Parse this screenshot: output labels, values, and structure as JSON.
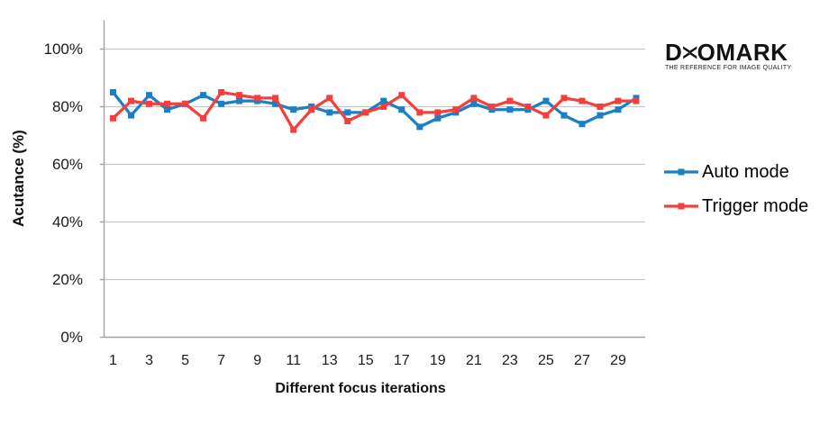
{
  "branding": {
    "logo": {
      "d": "D",
      "x": "><",
      "o": "O",
      "mark": "MARK"
    },
    "tagline": "THE REFERENCE FOR IMAGE QUALITY"
  },
  "chart_data": {
    "type": "line",
    "title": "",
    "xlabel": "Different focus iterations",
    "ylabel": "Acutance (%)",
    "ylim": [
      0,
      110
    ],
    "y_tick_values": [
      0,
      20,
      40,
      60,
      80,
      100
    ],
    "y_ticks": [
      "0%",
      "20%",
      "40%",
      "60%",
      "80%",
      "100%"
    ],
    "x_tick_labels": [
      "1",
      "3",
      "5",
      "7",
      "9",
      "11",
      "13",
      "15",
      "17",
      "19",
      "21",
      "23",
      "25",
      "27",
      "29"
    ],
    "categories": [
      1,
      2,
      3,
      4,
      5,
      6,
      7,
      8,
      9,
      10,
      11,
      12,
      13,
      14,
      15,
      16,
      17,
      18,
      19,
      20,
      21,
      22,
      23,
      24,
      25,
      26,
      27,
      28,
      29,
      30
    ],
    "grid": true,
    "legend_position": "right",
    "series": [
      {
        "name": "Auto mode",
        "color": "#1b7fc3",
        "values": [
          85,
          77,
          84,
          79,
          81,
          84,
          81,
          82,
          82,
          81,
          79,
          80,
          78,
          78,
          78,
          82,
          79,
          73,
          76,
          78,
          81,
          79,
          79,
          79,
          82,
          77,
          74,
          77,
          79,
          83
        ]
      },
      {
        "name": "Trigger mode",
        "color": "#f2403e",
        "values": [
          76,
          82,
          81,
          81,
          81,
          76,
          85,
          84,
          83,
          83,
          72,
          79,
          83,
          75,
          78,
          80,
          84,
          78,
          78,
          79,
          83,
          80,
          82,
          80,
          77,
          83,
          82,
          80,
          82,
          82
        ]
      }
    ]
  },
  "style_colors": {
    "gridline": "#c9c9c9",
    "axis": "#a3a3a3",
    "tick_text": "#1a1a1a"
  }
}
